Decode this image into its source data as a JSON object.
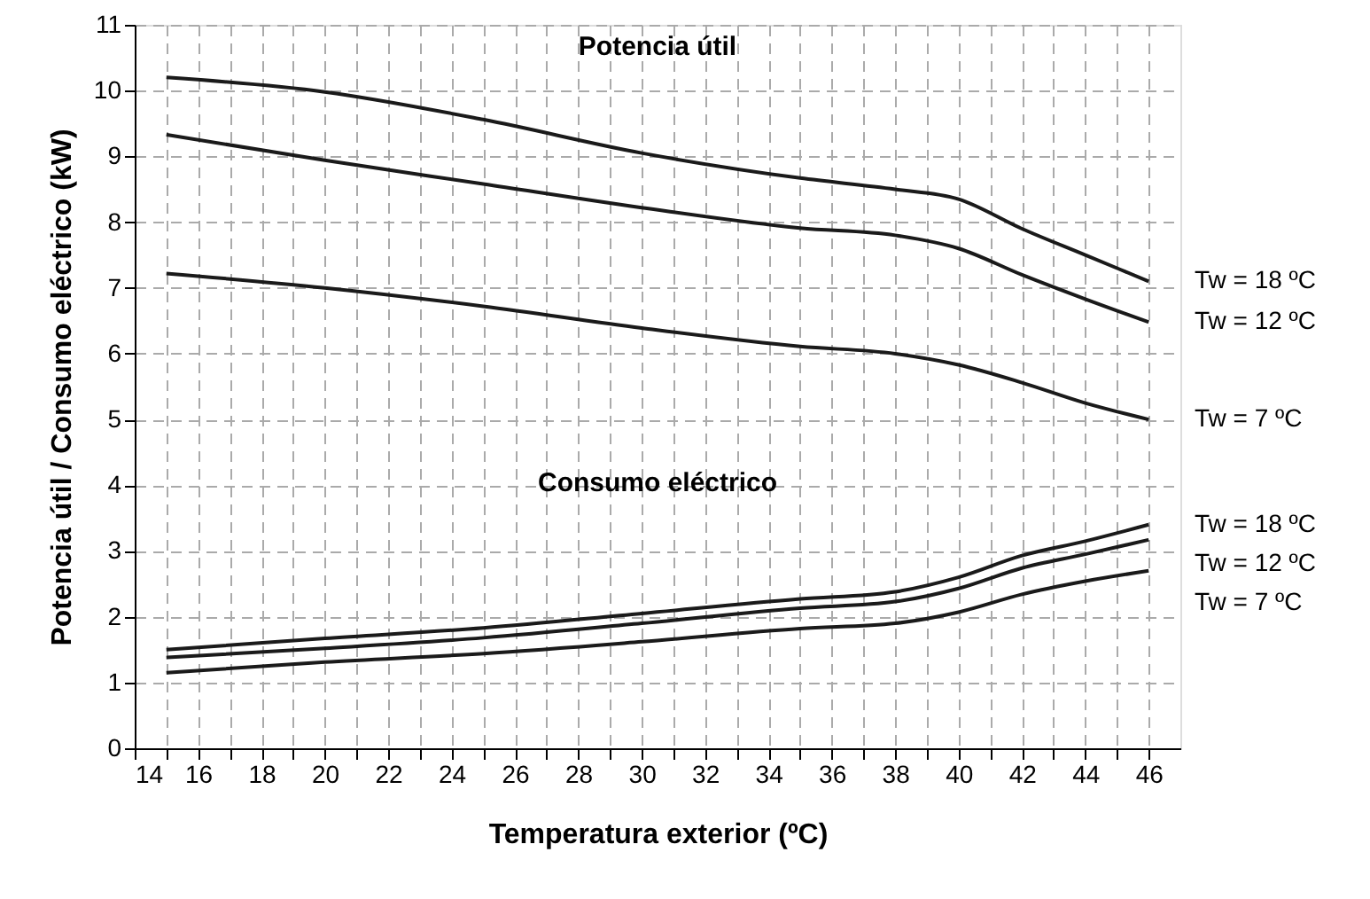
{
  "chart_data": {
    "type": "line",
    "xlabel": "Temperatura exterior (ºC)",
    "ylabel": "Potencia útil / Consumo eléctrico (kW)",
    "x": [
      15,
      20,
      25,
      30,
      35,
      38,
      40,
      42,
      44,
      46
    ],
    "series": [
      {
        "name": "Tw = 18 ºC",
        "color": "#1a1a1a",
        "values": [
          10.2,
          9.98,
          9.56,
          9.05,
          8.67,
          8.5,
          8.35,
          7.9,
          7.5,
          7.1
        ]
      },
      {
        "name": "Tw = 12 ºC",
        "color": "#1a1a1a",
        "values": [
          9.33,
          8.94,
          8.58,
          8.22,
          7.91,
          7.8,
          7.6,
          7.2,
          6.83,
          6.48
        ]
      },
      {
        "name": "Tw = 7 ºC",
        "color": "#1a1a1a",
        "values": [
          7.22,
          7.0,
          6.72,
          6.39,
          6.11,
          6.0,
          5.83,
          5.56,
          5.25,
          5.0
        ]
      },
      {
        "name": "Tw = 18 ºC",
        "color": "#1a1a1a",
        "values": [
          1.5,
          1.67,
          1.83,
          2.05,
          2.27,
          2.38,
          2.6,
          2.93,
          3.15,
          3.4
        ]
      },
      {
        "name": "Tw = 12 ºC",
        "color": "#1a1a1a",
        "values": [
          1.38,
          1.52,
          1.68,
          1.9,
          2.13,
          2.23,
          2.43,
          2.74,
          2.95,
          3.17
        ]
      },
      {
        "name": "Tw = 7 ºC",
        "color": "#1a1a1a",
        "values": [
          1.15,
          1.31,
          1.44,
          1.62,
          1.82,
          1.9,
          2.07,
          2.34,
          2.54,
          2.7
        ]
      }
    ],
    "annotations": [
      "Potencia útil",
      "Consumo eléctrico"
    ],
    "xlim": [
      14,
      47
    ],
    "ylim": [
      0,
      11
    ],
    "xticks": [
      14,
      {
        "value": 15,
        "label": null
      },
      16,
      {
        "value": 17,
        "label": null
      },
      18,
      {
        "value": 19,
        "label": null
      },
      20,
      {
        "value": 21,
        "label": null
      },
      22,
      {
        "value": 23,
        "label": null
      },
      24,
      {
        "value": 25,
        "label": null
      },
      26,
      {
        "value": 27,
        "label": null
      },
      28,
      {
        "value": 29,
        "label": null
      },
      30,
      {
        "value": 31,
        "label": null
      },
      32,
      {
        "value": 33,
        "label": null
      },
      34,
      {
        "value": 35,
        "label": null
      },
      36,
      {
        "value": 37,
        "label": null
      },
      38,
      {
        "value": 39,
        "label": null
      },
      40,
      {
        "value": 41,
        "label": null
      },
      42,
      {
        "value": 43,
        "label": null
      },
      44,
      {
        "value": 45,
        "label": null
      },
      46
    ],
    "yticks": [
      0,
      1,
      2,
      3,
      4,
      5,
      6,
      7,
      8,
      9,
      10,
      11
    ],
    "grid": true,
    "legend": false,
    "marker": "none",
    "line_style": "solid"
  }
}
